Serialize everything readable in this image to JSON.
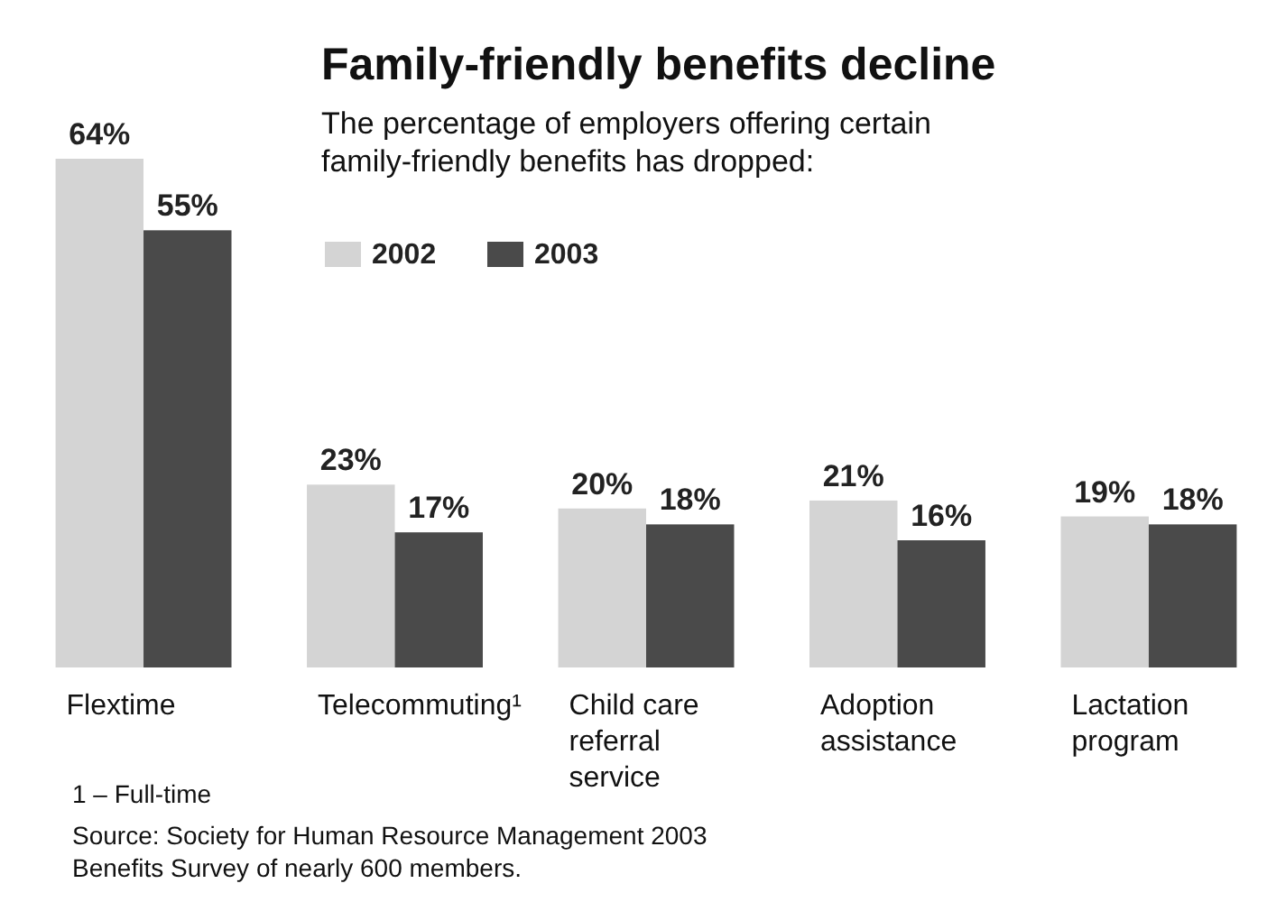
{
  "chart_data": {
    "type": "bar",
    "title": "Family-friendly benefits decline",
    "subtitle": "The percentage of employers offering certain family-friendly benefits has dropped:",
    "categories": [
      "Flextime",
      "Telecommuting¹",
      "Child care referral service",
      "Adoption assistance",
      "Lactation program"
    ],
    "series": [
      {
        "name": "2002",
        "color": "#d4d4d4",
        "values": [
          64,
          23,
          20,
          21,
          19
        ],
        "value_labels": [
          "64%",
          "23%",
          "20%",
          "21%",
          "19%"
        ]
      },
      {
        "name": "2003",
        "color": "#4a4a4a",
        "values": [
          55,
          17,
          18,
          16,
          18
        ],
        "value_labels": [
          "55%",
          "17%",
          "18%",
          "16%",
          "18%"
        ]
      }
    ],
    "legend": "top",
    "annotations": [
      "1 – Full-time",
      "Source: Society for Human Resource Management 2003 Benefits Survey of nearly 600 members."
    ]
  }
}
